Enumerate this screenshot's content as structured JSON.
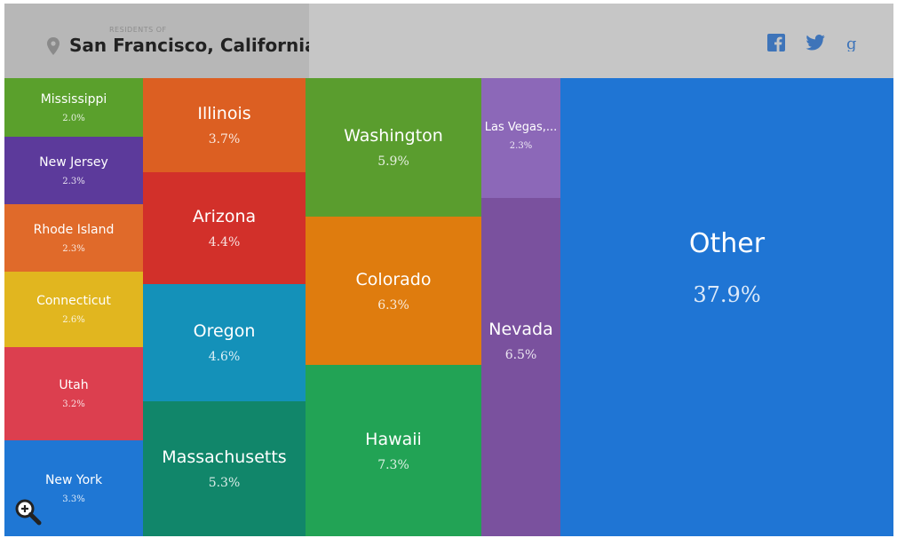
{
  "header": {
    "residents_label": "RESIDENTS OF",
    "city": "San Francisco, California",
    "share_icons": [
      "facebook-icon",
      "twitter-icon",
      "google-plus-icon"
    ]
  },
  "colors": {
    "Mississippi": "#5aa02c",
    "New Jersey": "#5c3a9b",
    "Rhode Island": "#e06a2a",
    "Connecticut": "#e1b61f",
    "Utah": "#dc3f4f",
    "New York": "#1f77d4",
    "Illinois": "#dc5f22",
    "Arizona": "#d2302a",
    "Oregon": "#1491b9",
    "Massachusetts": "#11866a",
    "Washington": "#5a9d2e",
    "Colorado": "#df7c0e",
    "Hawaii": "#22a355",
    "Las Vegas,...": "#8c68b8",
    "Nevada": "#7a519e",
    "Other": "#1f75d4"
  },
  "chart_data": {
    "type": "treemap",
    "title": "San Francisco, California",
    "subtitle": "RESIDENTS OF",
    "columns": [
      {
        "items": [
          {
            "name": "Mississippi",
            "pct_label": "2.0%",
            "value": 2.0
          },
          {
            "name": "New Jersey",
            "pct_label": "2.3%",
            "value": 2.3
          },
          {
            "name": "Rhode Island",
            "pct_label": "2.3%",
            "value": 2.3
          },
          {
            "name": "Connecticut",
            "pct_label": "2.6%",
            "value": 2.6
          },
          {
            "name": "Utah",
            "pct_label": "3.2%",
            "value": 3.2
          },
          {
            "name": "New York",
            "pct_label": "3.3%",
            "value": 3.3
          }
        ]
      },
      {
        "items": [
          {
            "name": "Illinois",
            "pct_label": "3.7%",
            "value": 3.7
          },
          {
            "name": "Arizona",
            "pct_label": "4.4%",
            "value": 4.4
          },
          {
            "name": "Oregon",
            "pct_label": "4.6%",
            "value": 4.6
          },
          {
            "name": "Massachusetts",
            "pct_label": "5.3%",
            "value": 5.3
          }
        ]
      },
      {
        "items": [
          {
            "name": "Washington",
            "pct_label": "5.9%",
            "value": 5.9
          },
          {
            "name": "Colorado",
            "pct_label": "6.3%",
            "value": 6.3
          },
          {
            "name": "Hawaii",
            "pct_label": "7.3%",
            "value": 7.3
          }
        ]
      },
      {
        "items": [
          {
            "name": "Las Vegas,...",
            "pct_label": "2.3%",
            "value": 2.3
          },
          {
            "name": "Nevada",
            "pct_label": "6.5%",
            "value": 6.5
          }
        ]
      },
      {
        "items": [
          {
            "name": "Other",
            "pct_label": "37.9%",
            "value": 37.9
          }
        ]
      }
    ]
  }
}
